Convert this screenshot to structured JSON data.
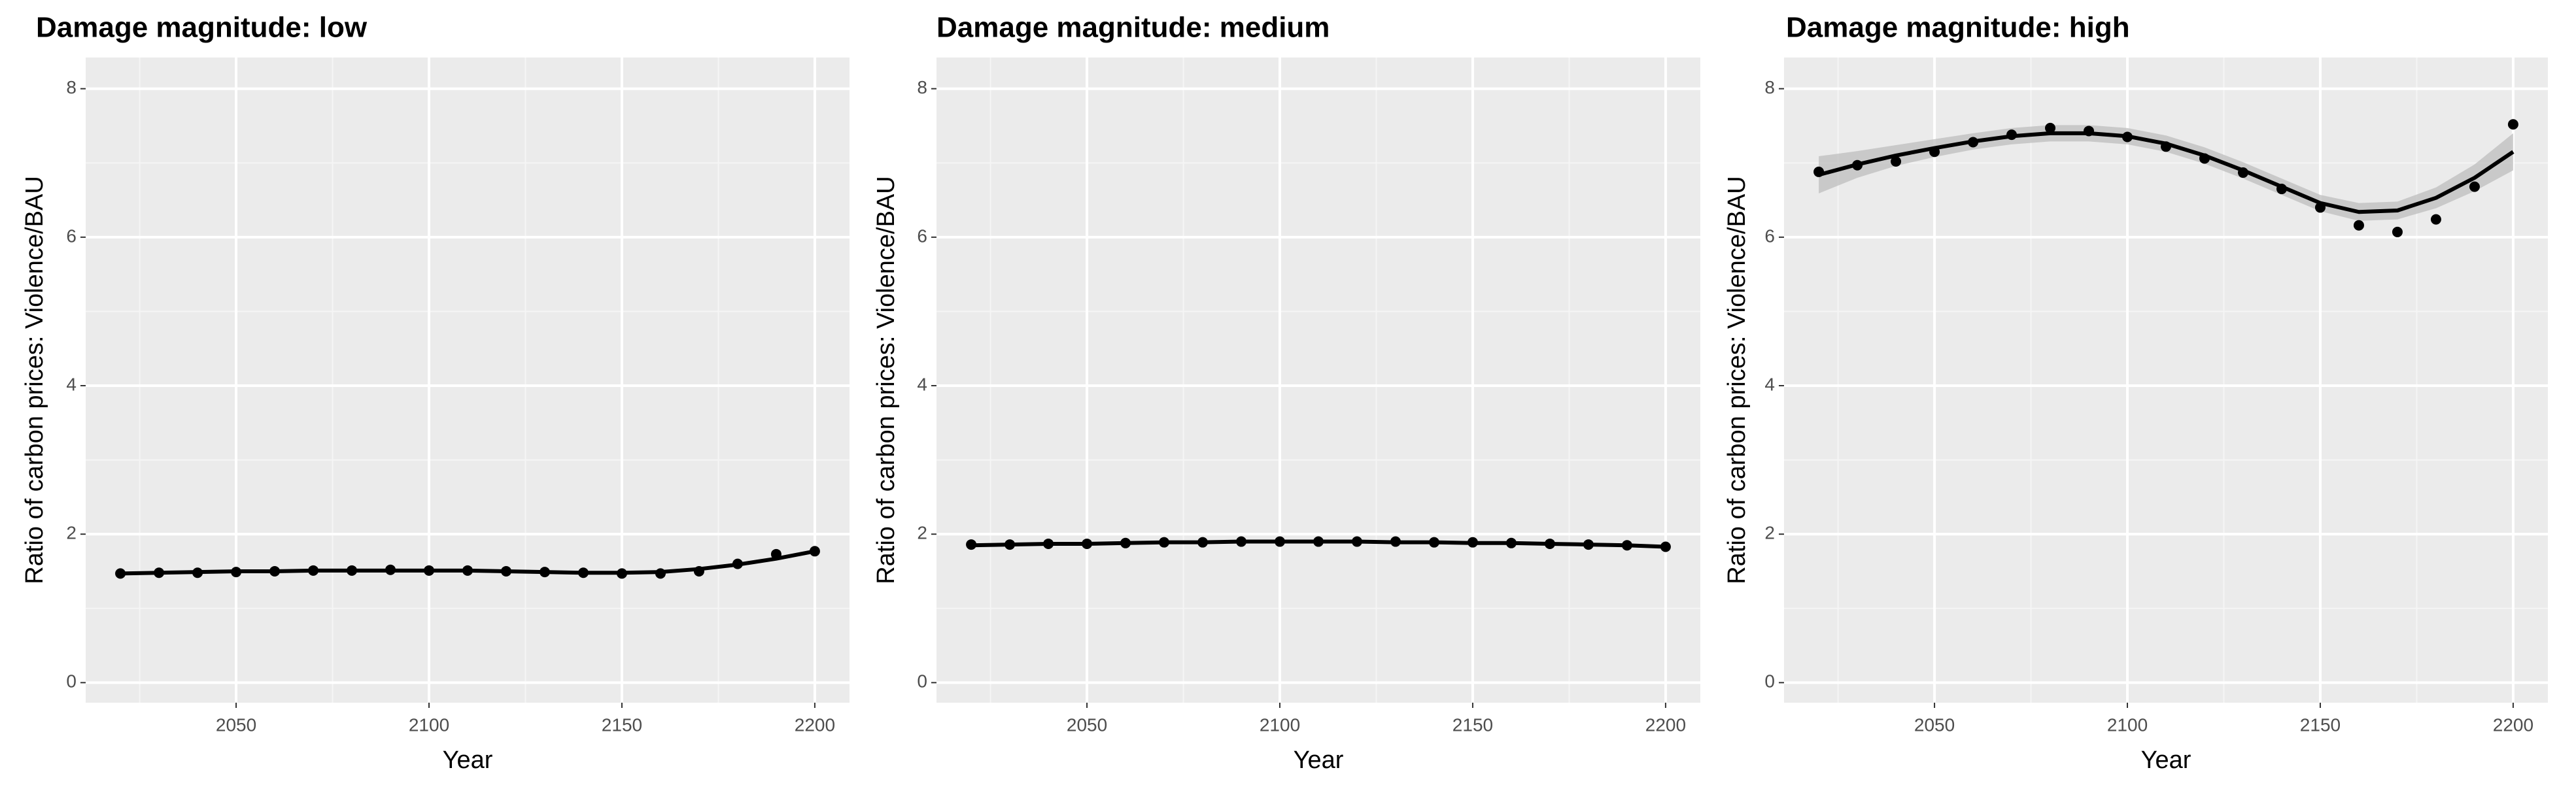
{
  "chart_data": [
    {
      "type": "scatter",
      "title": "Damage magnitude: low",
      "x_label": "Year",
      "y_label": "Ratio of carbon prices: Violence/BAU",
      "x": [
        2020,
        2030,
        2040,
        2050,
        2060,
        2070,
        2080,
        2090,
        2100,
        2110,
        2120,
        2130,
        2140,
        2150,
        2160,
        2170,
        2180,
        2190,
        2200
      ],
      "values": [
        1.47,
        1.48,
        1.48,
        1.49,
        1.5,
        1.51,
        1.51,
        1.52,
        1.51,
        1.51,
        1.5,
        1.49,
        1.48,
        1.47,
        1.47,
        1.5,
        1.6,
        1.73,
        1.77
      ],
      "fit": [
        1.47,
        1.48,
        1.49,
        1.5,
        1.5,
        1.51,
        1.51,
        1.51,
        1.51,
        1.51,
        1.5,
        1.49,
        1.48,
        1.48,
        1.49,
        1.53,
        1.59,
        1.67,
        1.77
      ],
      "xlim": [
        2011,
        2209
      ],
      "ylim": [
        -0.27,
        8.42
      ],
      "xticks": [
        2050,
        2100,
        2150,
        2200
      ],
      "yticks": [
        0,
        2,
        4,
        6,
        8
      ],
      "x_minor": [
        2025,
        2075,
        2125,
        2175
      ],
      "y_minor": [
        1,
        3,
        5,
        7
      ],
      "grid": true,
      "color": "#000000"
    },
    {
      "type": "scatter",
      "title": "Damage magnitude: medium",
      "x_label": "Year",
      "y_label": "Ratio of carbon prices: Violence/BAU",
      "x": [
        2020,
        2030,
        2040,
        2050,
        2060,
        2070,
        2080,
        2090,
        2100,
        2110,
        2120,
        2130,
        2140,
        2150,
        2160,
        2170,
        2180,
        2190,
        2200
      ],
      "values": [
        1.86,
        1.86,
        1.87,
        1.87,
        1.88,
        1.89,
        1.89,
        1.9,
        1.9,
        1.9,
        1.9,
        1.9,
        1.89,
        1.89,
        1.88,
        1.87,
        1.86,
        1.85,
        1.83
      ],
      "fit": [
        1.85,
        1.86,
        1.87,
        1.87,
        1.88,
        1.89,
        1.89,
        1.9,
        1.9,
        1.9,
        1.9,
        1.89,
        1.89,
        1.88,
        1.88,
        1.87,
        1.86,
        1.85,
        1.83
      ],
      "xlim": [
        2011,
        2209
      ],
      "ylim": [
        -0.27,
        8.42
      ],
      "xticks": [
        2050,
        2100,
        2150,
        2200
      ],
      "yticks": [
        0,
        2,
        4,
        6,
        8
      ],
      "x_minor": [
        2025,
        2075,
        2125,
        2175
      ],
      "y_minor": [
        1,
        3,
        5,
        7
      ],
      "grid": true,
      "color": "#000000"
    },
    {
      "type": "scatter",
      "title": "Damage magnitude: high",
      "x_label": "Year",
      "y_label": "Ratio of carbon prices: Violence/BAU",
      "x": [
        2020,
        2030,
        2040,
        2050,
        2060,
        2070,
        2080,
        2090,
        2100,
        2110,
        2120,
        2130,
        2140,
        2150,
        2160,
        2170,
        2180,
        2190,
        2200
      ],
      "values": [
        6.88,
        6.97,
        7.02,
        7.15,
        7.28,
        7.38,
        7.47,
        7.43,
        7.35,
        7.22,
        7.06,
        6.87,
        6.65,
        6.4,
        6.16,
        6.07,
        6.24,
        6.68,
        7.52
      ],
      "fit": [
        6.84,
        6.98,
        7.1,
        7.2,
        7.29,
        7.36,
        7.4,
        7.4,
        7.36,
        7.26,
        7.1,
        6.9,
        6.68,
        6.46,
        6.34,
        6.36,
        6.53,
        6.8,
        7.15
      ],
      "fit_lower": [
        6.59,
        6.8,
        6.96,
        7.08,
        7.18,
        7.25,
        7.29,
        7.29,
        7.25,
        7.15,
        6.99,
        6.79,
        6.57,
        6.35,
        6.22,
        6.24,
        6.39,
        6.62,
        6.9
      ],
      "fit_upper": [
        7.09,
        7.16,
        7.24,
        7.32,
        7.4,
        7.47,
        7.51,
        7.51,
        7.47,
        7.37,
        7.21,
        7.01,
        6.79,
        6.57,
        6.46,
        6.48,
        6.67,
        6.98,
        7.4
      ],
      "xlim": [
        2011,
        2209
      ],
      "ylim": [
        -0.27,
        8.42
      ],
      "xticks": [
        2050,
        2100,
        2150,
        2200
      ],
      "yticks": [
        0,
        2,
        4,
        6,
        8
      ],
      "x_minor": [
        2025,
        2075,
        2125,
        2175
      ],
      "y_minor": [
        1,
        3,
        5,
        7
      ],
      "grid": true,
      "color": "#000000"
    }
  ]
}
